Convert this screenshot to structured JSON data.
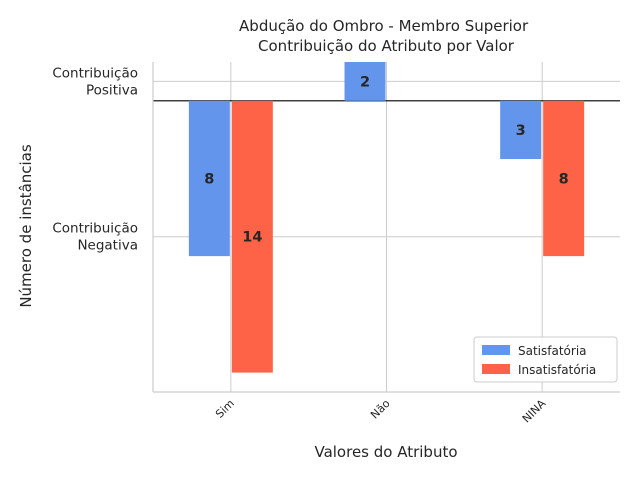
{
  "chart_data": {
    "type": "bar",
    "title_lines": [
      "Abdução do Ombro - Membro Superior",
      "Contribuição do Atributo por Valor"
    ],
    "xlabel": "Valores do Atributo",
    "ylabel": "Número de instâncias",
    "categories": [
      "Sim",
      "Não",
      "NINA"
    ],
    "y_ticks": [
      {
        "value": 1,
        "lines": [
          "Contribuição",
          "Positiva"
        ]
      },
      {
        "value": -7,
        "lines": [
          "Contribuição",
          "Negativa"
        ]
      }
    ],
    "ylim": [
      -15,
      2
    ],
    "baseline": 0,
    "grid": true,
    "legend_position": "lower-right",
    "series": [
      {
        "name": "Satisfatória",
        "color": "#6495ED",
        "values": [
          -8,
          2,
          -3
        ],
        "labels": [
          "8",
          "2",
          "3"
        ]
      },
      {
        "name": "Insatisfatória",
        "color": "#FF6347",
        "values": [
          -14,
          null,
          -8
        ],
        "labels": [
          "14",
          "",
          "8"
        ]
      }
    ]
  }
}
